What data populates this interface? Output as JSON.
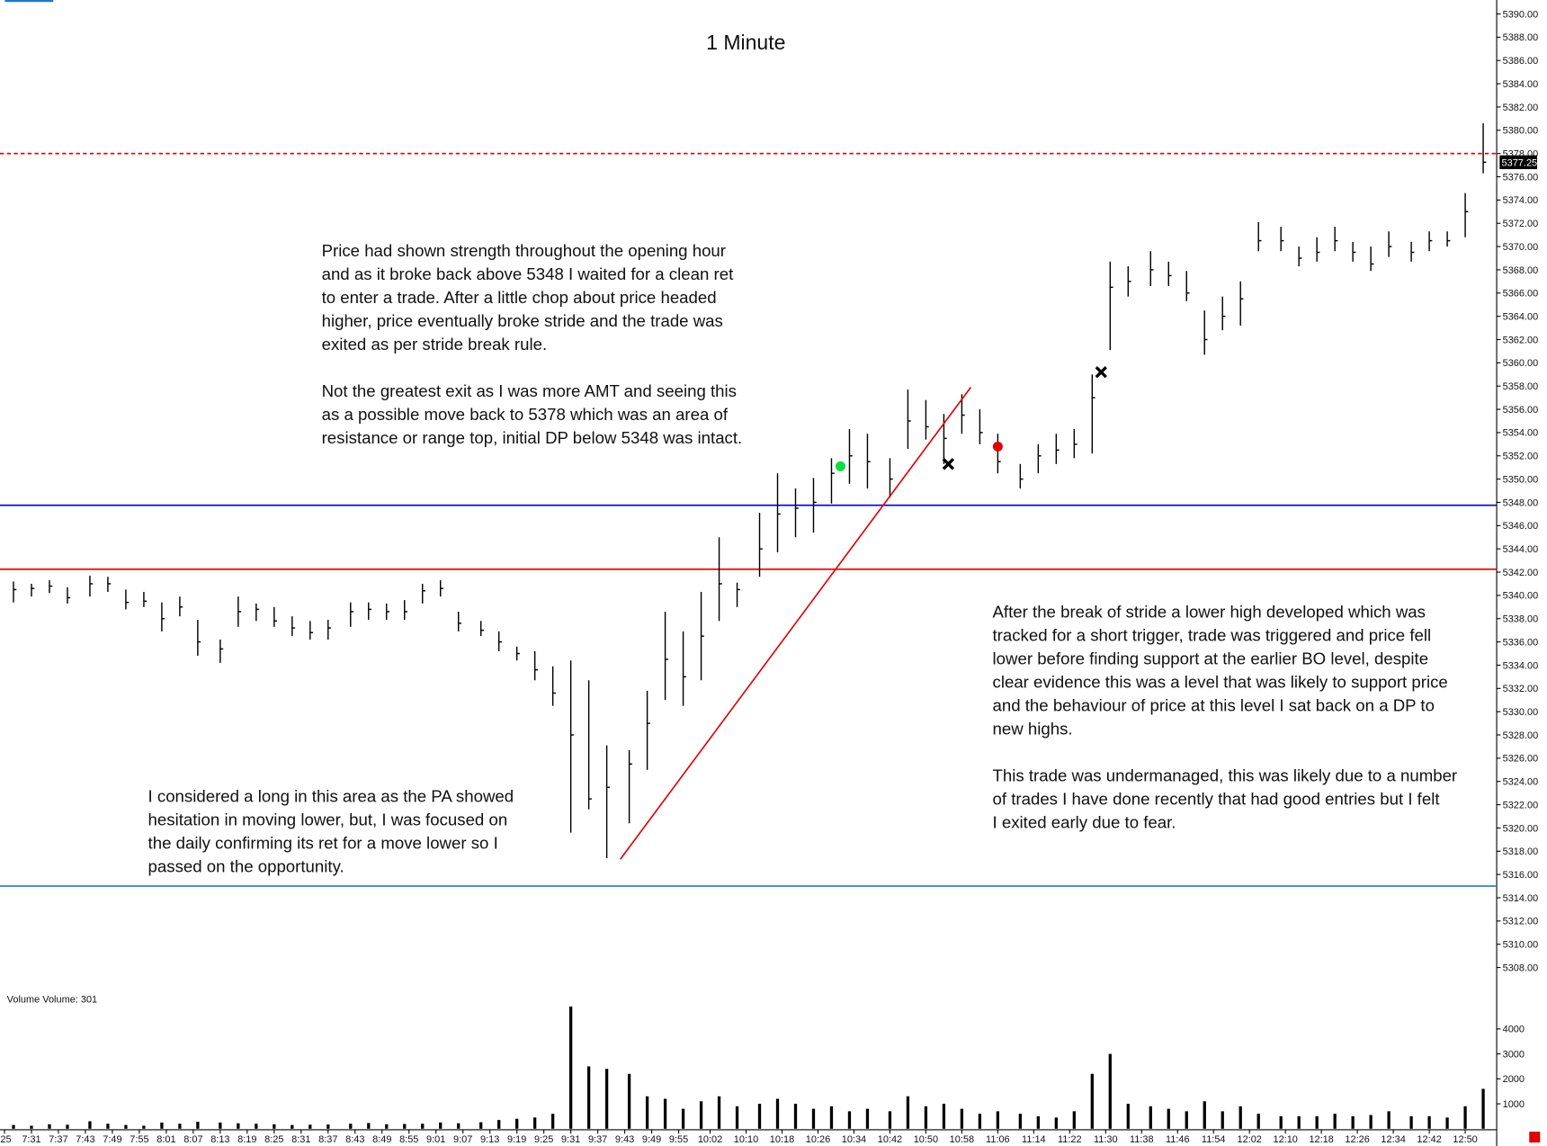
{
  "chart_data": {
    "type": "ohlc",
    "title": "1 Minute",
    "xlim": [
      "7:24",
      "12:57"
    ],
    "ylim": [
      5306.1,
      5391.2
    ],
    "yticks": [
      {
        "value": 5308,
        "label": "5308.00"
      },
      {
        "value": 5310,
        "label": "5310.00"
      },
      {
        "value": 5312,
        "label": "5312.00"
      },
      {
        "value": 5314,
        "label": "5314.00"
      },
      {
        "value": 5316,
        "label": "5316.00"
      },
      {
        "value": 5318,
        "label": "5318.00"
      },
      {
        "value": 5320,
        "label": "5320.00"
      },
      {
        "value": 5322,
        "label": "5322.00"
      },
      {
        "value": 5324,
        "label": "5324.00"
      },
      {
        "value": 5326,
        "label": "5326.00"
      },
      {
        "value": 5328,
        "label": "5328.00"
      },
      {
        "value": 5330,
        "label": "5330.00"
      },
      {
        "value": 5332,
        "label": "5332.00"
      },
      {
        "value": 5334,
        "label": "5334.00"
      },
      {
        "value": 5336,
        "label": "5336.00"
      },
      {
        "value": 5338,
        "label": "5338.00"
      },
      {
        "value": 5340,
        "label": "5340.00"
      },
      {
        "value": 5342,
        "label": "5342.00"
      },
      {
        "value": 5344,
        "label": "5344.00"
      },
      {
        "value": 5346,
        "label": "5346.00"
      },
      {
        "value": 5348,
        "label": "5348.00"
      },
      {
        "value": 5350,
        "label": "5350.00"
      },
      {
        "value": 5352,
        "label": "5352.00"
      },
      {
        "value": 5354,
        "label": "5354.00"
      },
      {
        "value": 5356,
        "label": "5356.00"
      },
      {
        "value": 5358,
        "label": "5358.00"
      },
      {
        "value": 5360,
        "label": "5360.00"
      },
      {
        "value": 5362,
        "label": "5362.00"
      },
      {
        "value": 5364,
        "label": "5364.00"
      },
      {
        "value": 5366,
        "label": "5366.00"
      },
      {
        "value": 5368,
        "label": "5368.00"
      },
      {
        "value": 5370,
        "label": "5370.00"
      },
      {
        "value": 5372,
        "label": "5372.00"
      },
      {
        "value": 5374,
        "label": "5374.00"
      },
      {
        "value": 5376,
        "label": "5376.00"
      },
      {
        "value": 5378,
        "label": "5378.00"
      },
      {
        "value": 5380,
        "label": "5380.00"
      },
      {
        "value": 5382,
        "label": "5382.00"
      },
      {
        "value": 5384,
        "label": "5384.00"
      },
      {
        "value": 5386,
        "label": "5386.00"
      },
      {
        "value": 5388,
        "label": "5388.00"
      },
      {
        "value": 5390,
        "label": "5390.00"
      }
    ],
    "xticks": [
      {
        "value": "7:25",
        "label": ":25"
      },
      "7:31",
      "7:37",
      "7:43",
      "7:49",
      "7:55",
      "8:01",
      "8:07",
      "8:13",
      "8:19",
      "8:25",
      "8:31",
      "8:37",
      "8:43",
      "8:49",
      "8:55",
      "9:01",
      "9:07",
      "9:13",
      "9:19",
      "9:25",
      "9:31",
      "9:37",
      "9:43",
      "9:49",
      "9:55",
      "10:02",
      "10:10",
      "10:18",
      "10:26",
      "10:34",
      "10:42",
      "10:50",
      "10:58",
      "11:06",
      "11:14",
      "11:22",
      "11:30",
      "11:38",
      "11:46",
      "11:54",
      "12:02",
      "12:10",
      "12:18",
      "12:26",
      "12:34",
      "12:42",
      "12:50"
    ],
    "x": [
      "7:27",
      "7:31",
      "7:35",
      "7:39",
      "7:44",
      "7:48",
      "7:52",
      "7:56",
      "8:00",
      "8:04",
      "8:08",
      "8:13",
      "8:17",
      "8:21",
      "8:25",
      "8:29",
      "8:33",
      "8:37",
      "8:42",
      "8:46",
      "8:50",
      "8:54",
      "8:58",
      "9:02",
      "9:06",
      "9:11",
      "9:15",
      "9:19",
      "9:23",
      "9:27",
      "9:31",
      "9:35",
      "9:39",
      "9:44",
      "9:48",
      "9:52",
      "9:56",
      "10:00",
      "10:04",
      "10:08",
      "10:13",
      "10:17",
      "10:21",
      "10:25",
      "10:29",
      "10:33",
      "10:37",
      "10:42",
      "10:46",
      "10:50",
      "10:54",
      "10:58",
      "11:02",
      "11:06",
      "11:11",
      "11:15",
      "11:19",
      "11:23",
      "11:27",
      "11:31",
      "11:35",
      "11:40",
      "11:44",
      "11:48",
      "11:52",
      "11:56",
      "12:00",
      "12:04",
      "12:09",
      "12:13",
      "12:17",
      "12:21",
      "12:25",
      "12:29",
      "12:33",
      "12:38",
      "12:42",
      "12:46",
      "12:50",
      "12:54"
    ],
    "high": [
      5341.2,
      5341.0,
      5341.3,
      5340.7,
      5341.7,
      5341.6,
      5340.5,
      5340.3,
      5339.4,
      5339.9,
      5337.9,
      5336.2,
      5339.9,
      5339.3,
      5339.0,
      5338.2,
      5337.8,
      5337.9,
      5339.4,
      5339.4,
      5339.3,
      5339.6,
      5341.0,
      5341.3,
      5338.6,
      5337.8,
      5336.9,
      5335.6,
      5335.2,
      5333.9,
      5334.4,
      5332.7,
      5327.1,
      5326.7,
      5331.8,
      5338.6,
      5336.9,
      5340.3,
      5345.0,
      5341.1,
      5347.1,
      5350.5,
      5349.2,
      5350.1,
      5351.8,
      5354.3,
      5353.9,
      5351.8,
      5357.7,
      5356.8,
      5355.6,
      5357.3,
      5356.0,
      5353.9,
      5351.3,
      5353.0,
      5353.9,
      5354.3,
      5359.0,
      5368.7,
      5368.3,
      5369.6,
      5368.7,
      5367.9,
      5364.5,
      5365.7,
      5367.0,
      5372.1,
      5371.7,
      5370.0,
      5370.8,
      5371.7,
      5370.4,
      5370.0,
      5371.3,
      5370.4,
      5371.3,
      5371.3,
      5374.6,
      5380.6
    ],
    "low": [
      5339.4,
      5339.9,
      5340.2,
      5339.3,
      5339.9,
      5340.3,
      5338.8,
      5339.0,
      5336.9,
      5338.2,
      5334.8,
      5334.2,
      5337.3,
      5337.8,
      5337.3,
      5336.5,
      5336.2,
      5336.2,
      5337.3,
      5337.9,
      5337.9,
      5337.9,
      5339.3,
      5339.9,
      5336.9,
      5336.5,
      5335.2,
      5334.4,
      5332.7,
      5330.5,
      5319.6,
      5321.6,
      5317.4,
      5320.4,
      5325.0,
      5331.0,
      5330.5,
      5332.7,
      5337.8,
      5339.0,
      5341.6,
      5343.7,
      5345.0,
      5345.4,
      5347.9,
      5349.6,
      5349.2,
      5348.4,
      5352.6,
      5353.4,
      5351.3,
      5353.9,
      5353.0,
      5350.5,
      5349.2,
      5350.5,
      5351.3,
      5351.8,
      5352.2,
      5361.1,
      5365.7,
      5366.6,
      5366.6,
      5365.3,
      5360.7,
      5362.8,
      5363.2,
      5369.6,
      5369.6,
      5368.3,
      5368.7,
      5369.6,
      5368.7,
      5367.9,
      5369.1,
      5368.7,
      5369.6,
      5370.0,
      5370.8,
      5376.3
    ],
    "close": [
      5340.5,
      5340.6,
      5340.8,
      5339.8,
      5341.0,
      5341.0,
      5339.4,
      5339.5,
      5338.0,
      5339.0,
      5336.0,
      5335.4,
      5338.6,
      5338.8,
      5337.8,
      5337.2,
      5336.8,
      5337.2,
      5338.6,
      5338.8,
      5338.6,
      5338.6,
      5340.4,
      5340.6,
      5337.6,
      5337.0,
      5336.0,
      5335.0,
      5333.6,
      5331.6,
      5328.0,
      5322.5,
      5323.5,
      5325.5,
      5329.0,
      5334.5,
      5333.0,
      5336.5,
      5341.0,
      5340.5,
      5344.0,
      5347.0,
      5347.5,
      5348.0,
      5350.5,
      5352.0,
      5351.5,
      5350.0,
      5355.0,
      5354.5,
      5353.5,
      5355.5,
      5354.0,
      5351.5,
      5350.0,
      5352.0,
      5352.5,
      5353.0,
      5357.0,
      5366.5,
      5367.0,
      5368.0,
      5367.5,
      5366.0,
      5362.0,
      5364.0,
      5365.5,
      5370.5,
      5370.5,
      5369.0,
      5369.5,
      5370.5,
      5369.5,
      5368.5,
      5370.0,
      5369.5,
      5370.5,
      5370.5,
      5373.0,
      5377.25
    ],
    "color": "#000000",
    "last_price": 5377.25,
    "levels": [
      {
        "value": 5378,
        "color": "#e00000",
        "style": "dashed"
      },
      {
        "value": 5347.75,
        "color": "#0000c8",
        "style": "solid"
      },
      {
        "value": 5342.25,
        "color": "#e00000",
        "style": "solid"
      },
      {
        "value": 5315,
        "color": "#1e78c8",
        "style": "solid"
      }
    ],
    "trend_line": {
      "x": [
        "9:42",
        "11:00"
      ],
      "y": [
        5317.3,
        5357.9
      ],
      "color": "#e00000"
    },
    "markers": [
      {
        "x": "10:31",
        "y": 5351.1,
        "shape": "dot",
        "color": "#00e040"
      },
      {
        "x": "10:55",
        "y": 5351.3,
        "shape": "cross",
        "color": "#000000"
      },
      {
        "x": "11:06",
        "y": 5352.8,
        "shape": "dot",
        "color": "#e00000"
      },
      {
        "x": "11:29",
        "y": 5359.2,
        "shape": "cross",
        "color": "#000000"
      }
    ],
    "notes": [
      {
        "lines": [
          "Price had shown strength throughout the opening hour",
          "and as it broke back above 5348 I waited for a clean ret",
          "to enter a trade.  After a little chop about price headed",
          "higher, price eventually broke stride and the trade was",
          "exited as per stride break rule."
        ]
      },
      {
        "lines": [
          "Not the greatest exit as I was more AMT and seeing this",
          "as a possible move back to 5378 which was an area of",
          "resistance or range top, initial DP below 5348 was intact."
        ]
      },
      {
        "lines": [
          "I considered a long in this area as the PA showed",
          "hesitation in moving lower, but, I was focused on",
          "the daily confirming its ret for a move lower so I",
          "passed on the opportunity."
        ]
      },
      {
        "lines": [
          "After the break of stride a lower high developed which was",
          "tracked for a short trigger, trade was triggered and price fell",
          "lower before finding support at the earlier BO level, despite",
          "clear evidence this was a level that was likely to support price",
          "and the behaviour of price at this level I sat back on a DP to",
          "new highs."
        ]
      },
      {
        "lines": [
          "This trade was undermanaged, this was likely due to a number",
          "of trades I have done recently that had good entries but I felt",
          "I exited early due to fear."
        ]
      }
    ],
    "volume": {
      "title": "Volume  Volume: 301",
      "ylim": [
        0,
        5300
      ],
      "yticks": [
        1000,
        2000,
        3000,
        4000
      ],
      "color": "#000000",
      "values": [
        150,
        120,
        180,
        160,
        300,
        200,
        150,
        120,
        250,
        200,
        280,
        250,
        220,
        200,
        180,
        150,
        160,
        170,
        200,
        230,
        180,
        190,
        200,
        250,
        220,
        260,
        350,
        400,
        450,
        600,
        4900,
        2500,
        2400,
        2200,
        1300,
        1200,
        800,
        1100,
        1300,
        900,
        1000,
        1200,
        1000,
        800,
        900,
        700,
        800,
        700,
        1300,
        900,
        1000,
        800,
        600,
        700,
        600,
        500,
        450,
        700,
        2200,
        3000,
        1000,
        900,
        800,
        700,
        1100,
        700,
        900,
        600,
        500,
        500,
        500,
        600,
        500,
        550,
        700,
        500,
        500,
        450,
        900,
        1600
      ]
    }
  }
}
